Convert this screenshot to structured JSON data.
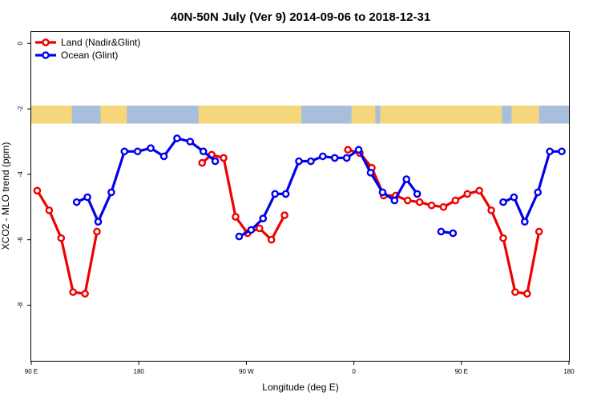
{
  "chart_data": {
    "type": "line",
    "title": "40N-50N July (Ver 9)   2014-09-06 to 2018-12-31",
    "xlabel": "Longitude (deg E)",
    "ylabel": "XCO2 - MLO trend (ppm)",
    "xlim": [
      90,
      540
    ],
    "ylim": [
      -9.7,
      0.35
    ],
    "x_ticks": [
      {
        "value": 90,
        "label": "90 E"
      },
      {
        "value": 180,
        "label": "180"
      },
      {
        "value": 270,
        "label": "90 W"
      },
      {
        "value": 360,
        "label": "0"
      },
      {
        "value": 450,
        "label": "90 E"
      },
      {
        "value": 540,
        "label": "180"
      }
    ],
    "y_ticks": [
      {
        "value": 0,
        "label": "0"
      },
      {
        "value": -2,
        "label": "-2"
      },
      {
        "value": -4,
        "label": "-4"
      },
      {
        "value": -6,
        "label": "-6"
      },
      {
        "value": -8,
        "label": "-8"
      }
    ],
    "legend_position": "top-left",
    "map_band": {
      "ymin": -2.45,
      "ymax": -1.9,
      "ocean_color": "#a8bedd",
      "land_color": "#f5d67a"
    },
    "series": [
      {
        "name": "Land (Nadir&Glint)",
        "color": "#ee0000",
        "segments": [
          [
            [
              95,
              -4.5
            ],
            [
              105,
              -5.1
            ],
            [
              115,
              -5.95
            ],
            [
              125,
              -7.6
            ],
            [
              135,
              -7.65
            ],
            [
              145,
              -5.75
            ]
          ],
          [
            [
              233,
              -3.65
            ],
            [
              241,
              -3.4
            ],
            [
              251,
              -3.5
            ],
            [
              261,
              -5.3
            ],
            [
              271,
              -5.8
            ],
            [
              281,
              -5.65
            ],
            [
              291,
              -6.0
            ],
            [
              302,
              -5.25
            ]
          ],
          [
            [
              355,
              -3.25
            ],
            [
              365,
              -3.35
            ],
            [
              375,
              -3.8
            ],
            [
              385,
              -4.65
            ],
            [
              395,
              -4.65
            ],
            [
              405,
              -4.8
            ],
            [
              415,
              -4.85
            ],
            [
              425,
              -4.95
            ],
            [
              435,
              -5.0
            ],
            [
              445,
              -4.8
            ],
            [
              455,
              -4.6
            ],
            [
              465,
              -4.5
            ],
            [
              475,
              -5.1
            ],
            [
              485,
              -5.95
            ],
            [
              495,
              -7.6
            ],
            [
              505,
              -7.65
            ],
            [
              515,
              -5.75
            ]
          ]
        ]
      },
      {
        "name": "Ocean (Glint)",
        "color": "#0000ee",
        "segments": [
          [
            [
              128,
              -4.85
            ],
            [
              137,
              -4.7
            ],
            [
              146,
              -5.45
            ],
            [
              157,
              -4.55
            ],
            [
              168,
              -3.3
            ],
            [
              179,
              -3.3
            ],
            [
              190,
              -3.2
            ],
            [
              201,
              -3.45
            ],
            [
              212,
              -2.9
            ],
            [
              223,
              -3.0
            ],
            [
              234,
              -3.3
            ],
            [
              244,
              -3.6
            ]
          ],
          [
            [
              264,
              -5.9
            ],
            [
              274,
              -5.7
            ],
            [
              284,
              -5.35
            ],
            [
              294,
              -4.6
            ],
            [
              303,
              -4.6
            ],
            [
              314,
              -3.6
            ],
            [
              324,
              -3.6
            ],
            [
              334,
              -3.45
            ],
            [
              344,
              -3.5
            ],
            [
              354,
              -3.5
            ],
            [
              364,
              -3.25
            ],
            [
              374,
              -3.95
            ],
            [
              384,
              -4.55
            ],
            [
              394,
              -4.8
            ],
            [
              404,
              -4.15
            ],
            [
              413,
              -4.6
            ]
          ],
          [
            [
              433,
              -5.75
            ],
            [
              443,
              -5.8
            ]
          ],
          [
            [
              485,
              -4.85
            ],
            [
              494,
              -4.7
            ],
            [
              503,
              -5.45
            ],
            [
              514,
              -4.55
            ],
            [
              524,
              -3.3
            ],
            [
              534,
              -3.3
            ]
          ]
        ]
      }
    ]
  }
}
